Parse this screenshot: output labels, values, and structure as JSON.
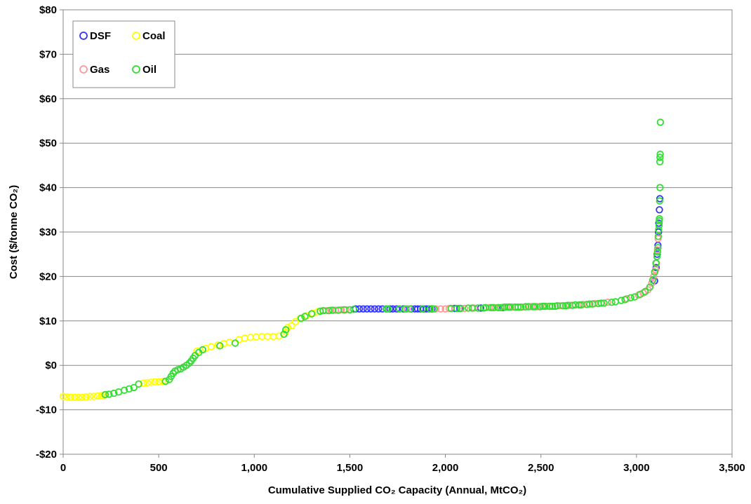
{
  "chart_data": {
    "type": "scatter",
    "title": "",
    "xlabel": "Cumulative Supplied CO₂ Capacity (Annual, MtCO₂)",
    "ylabel": "Cost ($/tonne CO₂)",
    "xlim": [
      0,
      3500
    ],
    "ylim": [
      -20,
      80
    ],
    "x_ticks": [
      0,
      500,
      1000,
      1500,
      2000,
      2500,
      3000,
      3500
    ],
    "x_tick_labels": [
      "0",
      "500",
      "1,000",
      "1,500",
      "2,000",
      "2,500",
      "3,000",
      "3,500"
    ],
    "y_ticks": [
      80,
      70,
      60,
      50,
      40,
      30,
      20,
      10,
      0,
      -10,
      -20
    ],
    "y_tick_labels": [
      "$80",
      "$70",
      "$60",
      "$50",
      "$40",
      "$30",
      "$20",
      "$10",
      "$0",
      "-$10",
      "-$20"
    ],
    "grid": "horizontal",
    "legend_position": "top-left",
    "series": [
      {
        "name": "DSF",
        "color": "#3333ff",
        "points": [
          [
            1530,
            12.7
          ],
          [
            1550,
            12.7
          ],
          [
            1570,
            12.7
          ],
          [
            1590,
            12.7
          ],
          [
            1610,
            12.7
          ],
          [
            1630,
            12.7
          ],
          [
            1650,
            12.7
          ],
          [
            1670,
            12.7
          ],
          [
            1690,
            12.7
          ],
          [
            1710,
            12.7
          ],
          [
            1725,
            12.7
          ],
          [
            1745,
            12.7
          ],
          [
            1760,
            12.7
          ],
          [
            1780,
            12.7
          ],
          [
            1800,
            12.7
          ],
          [
            1820,
            12.7
          ],
          [
            1840,
            12.7
          ],
          [
            1855,
            12.7
          ],
          [
            1870,
            12.7
          ],
          [
            1885,
            12.7
          ],
          [
            1900,
            12.7
          ],
          [
            1915,
            12.7
          ],
          [
            1930,
            12.7
          ],
          [
            2050,
            12.8
          ],
          [
            2075,
            12.8
          ],
          [
            2185,
            12.9
          ],
          [
            2300,
            13.0
          ],
          [
            3095,
            19.0
          ],
          [
            3103,
            22.0
          ],
          [
            3108,
            25.0
          ],
          [
            3112,
            27.0
          ],
          [
            3115,
            30.0
          ],
          [
            3117,
            32.0
          ],
          [
            3120,
            35.0
          ],
          [
            3122,
            37.5
          ]
        ]
      },
      {
        "name": "Coal",
        "color": "#ffff00",
        "points": [
          [
            0,
            -7.0
          ],
          [
            20,
            -7.1
          ],
          [
            40,
            -7.2
          ],
          [
            60,
            -7.2
          ],
          [
            80,
            -7.2
          ],
          [
            100,
            -7.2
          ],
          [
            120,
            -7.1
          ],
          [
            140,
            -7.0
          ],
          [
            160,
            -7.0
          ],
          [
            180,
            -6.9
          ],
          [
            200,
            -6.8
          ],
          [
            215,
            -6.7
          ],
          [
            420,
            -4.0
          ],
          [
            440,
            -3.9
          ],
          [
            460,
            -3.8
          ],
          [
            480,
            -3.7
          ],
          [
            500,
            -3.7
          ],
          [
            520,
            -3.6
          ],
          [
            700,
            3.2
          ],
          [
            745,
            3.8
          ],
          [
            775,
            4.2
          ],
          [
            810,
            4.6
          ],
          [
            840,
            4.9
          ],
          [
            870,
            5.2
          ],
          [
            920,
            5.8
          ],
          [
            950,
            6.1
          ],
          [
            980,
            6.3
          ],
          [
            1010,
            6.4
          ],
          [
            1040,
            6.5
          ],
          [
            1070,
            6.5
          ],
          [
            1100,
            6.5
          ],
          [
            1130,
            6.6
          ],
          [
            1165,
            7.5
          ],
          [
            1175,
            8.5
          ],
          [
            1195,
            8.9
          ],
          [
            1215,
            9.8
          ],
          [
            1240,
            10.5
          ],
          [
            1275,
            11.2
          ],
          [
            1305,
            11.7
          ],
          [
            1330,
            12.0
          ]
        ]
      },
      {
        "name": "Gas",
        "color": "#ff9999",
        "points": [
          [
            1375,
            12.3
          ],
          [
            1400,
            12.4
          ],
          [
            1425,
            12.4
          ],
          [
            1455,
            12.5
          ],
          [
            1480,
            12.5
          ],
          [
            1800,
            12.7
          ],
          [
            1950,
            12.7
          ],
          [
            1975,
            12.7
          ],
          [
            2000,
            12.7
          ],
          [
            2020,
            12.8
          ],
          [
            2100,
            12.8
          ],
          [
            2150,
            12.9
          ],
          [
            2230,
            13.0
          ],
          [
            2260,
            13.0
          ],
          [
            2280,
            13.0
          ],
          [
            2320,
            13.1
          ],
          [
            2350,
            13.1
          ],
          [
            2410,
            13.1
          ],
          [
            2450,
            13.2
          ],
          [
            2480,
            13.2
          ],
          [
            2530,
            13.3
          ],
          [
            2600,
            13.4
          ],
          [
            2650,
            13.5
          ],
          [
            2720,
            13.7
          ],
          [
            2780,
            13.9
          ],
          [
            2850,
            14.2
          ],
          [
            2950,
            15.0
          ],
          [
            3010,
            15.8
          ],
          [
            3035,
            16.3
          ],
          [
            3060,
            17.0
          ],
          [
            3080,
            18.5
          ],
          [
            3090,
            20.0
          ],
          [
            3100,
            21.5
          ],
          [
            3105,
            23.0
          ],
          [
            3110,
            26.0
          ],
          [
            3113,
            28.5
          ]
        ]
      },
      {
        "name": "Oil",
        "color": "#33dd33",
        "points": [
          [
            220,
            -6.6
          ],
          [
            240,
            -6.5
          ],
          [
            265,
            -6.3
          ],
          [
            290,
            -6.0
          ],
          [
            320,
            -5.6
          ],
          [
            345,
            -5.3
          ],
          [
            370,
            -5.0
          ],
          [
            395,
            -4.2
          ],
          [
            535,
            -3.6
          ],
          [
            555,
            -3.2
          ],
          [
            565,
            -2.5
          ],
          [
            575,
            -1.8
          ],
          [
            585,
            -1.3
          ],
          [
            600,
            -1.0
          ],
          [
            615,
            -0.8
          ],
          [
            630,
            -0.4
          ],
          [
            645,
            0.0
          ],
          [
            660,
            0.5
          ],
          [
            670,
            1.0
          ],
          [
            680,
            1.6
          ],
          [
            690,
            2.2
          ],
          [
            710,
            2.9
          ],
          [
            730,
            3.5
          ],
          [
            820,
            4.4
          ],
          [
            900,
            5.0
          ],
          [
            1155,
            7.0
          ],
          [
            1165,
            8.0
          ],
          [
            1245,
            10.6
          ],
          [
            1265,
            11.0
          ],
          [
            1300,
            11.6
          ],
          [
            1345,
            12.2
          ],
          [
            1360,
            12.3
          ],
          [
            1390,
            12.3
          ],
          [
            1410,
            12.4
          ],
          [
            1440,
            12.4
          ],
          [
            1470,
            12.5
          ],
          [
            1500,
            12.5
          ],
          [
            1520,
            12.6
          ],
          [
            1690,
            12.7
          ],
          [
            1700,
            12.7
          ],
          [
            1760,
            12.7
          ],
          [
            1790,
            12.7
          ],
          [
            1815,
            12.7
          ],
          [
            1880,
            12.7
          ],
          [
            1920,
            12.7
          ],
          [
            1940,
            12.7
          ],
          [
            2030,
            12.8
          ],
          [
            2060,
            12.8
          ],
          [
            2080,
            12.8
          ],
          [
            2120,
            12.9
          ],
          [
            2140,
            12.9
          ],
          [
            2170,
            12.9
          ],
          [
            2200,
            12.9
          ],
          [
            2210,
            13.0
          ],
          [
            2240,
            13.0
          ],
          [
            2250,
            13.0
          ],
          [
            2275,
            13.0
          ],
          [
            2290,
            13.0
          ],
          [
            2310,
            13.1
          ],
          [
            2330,
            13.1
          ],
          [
            2340,
            13.1
          ],
          [
            2365,
            13.1
          ],
          [
            2380,
            13.1
          ],
          [
            2395,
            13.1
          ],
          [
            2420,
            13.2
          ],
          [
            2435,
            13.2
          ],
          [
            2460,
            13.2
          ],
          [
            2470,
            13.2
          ],
          [
            2495,
            13.2
          ],
          [
            2510,
            13.3
          ],
          [
            2520,
            13.3
          ],
          [
            2545,
            13.3
          ],
          [
            2560,
            13.3
          ],
          [
            2575,
            13.3
          ],
          [
            2585,
            13.4
          ],
          [
            2615,
            13.4
          ],
          [
            2630,
            13.4
          ],
          [
            2640,
            13.5
          ],
          [
            2665,
            13.5
          ],
          [
            2680,
            13.6
          ],
          [
            2700,
            13.6
          ],
          [
            2710,
            13.6
          ],
          [
            2740,
            13.7
          ],
          [
            2755,
            13.8
          ],
          [
            2770,
            13.8
          ],
          [
            2800,
            13.9
          ],
          [
            2815,
            14.0
          ],
          [
            2830,
            14.0
          ],
          [
            2870,
            14.2
          ],
          [
            2890,
            14.3
          ],
          [
            2920,
            14.6
          ],
          [
            2940,
            14.8
          ],
          [
            2970,
            15.2
          ],
          [
            2990,
            15.4
          ],
          [
            3020,
            16.0
          ],
          [
            3045,
            16.6
          ],
          [
            3070,
            17.6
          ],
          [
            3085,
            19.2
          ],
          [
            3095,
            21.0
          ],
          [
            3102,
            23.0
          ],
          [
            3107,
            24.5
          ],
          [
            3110,
            25.5
          ],
          [
            3112,
            26.5
          ],
          [
            3114,
            29.0
          ],
          [
            3116,
            30.5
          ],
          [
            3118,
            31.5
          ],
          [
            3119,
            32.5
          ],
          [
            3120,
            33.0
          ],
          [
            3121,
            37.0
          ],
          [
            3123,
            40.0
          ],
          [
            3122,
            45.8
          ],
          [
            3123,
            46.8
          ],
          [
            3124,
            47.5
          ],
          [
            3125,
            54.7
          ]
        ]
      }
    ]
  }
}
